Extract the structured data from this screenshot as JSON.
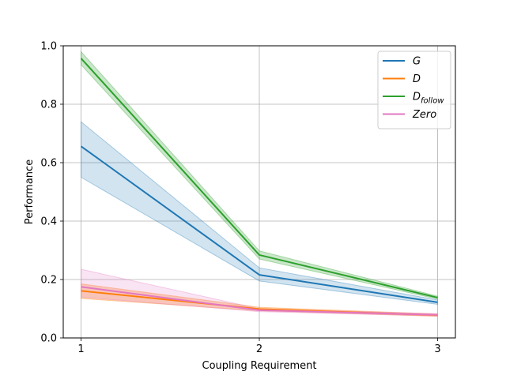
{
  "chart_data": {
    "type": "line",
    "xlabel": "Coupling Requirement",
    "ylabel": "Performance",
    "x": [
      1,
      2,
      3
    ],
    "xticks": [
      "1",
      "2",
      "3"
    ],
    "xlim": [
      0.9,
      3.1
    ],
    "ylim": [
      0.0,
      1.0
    ],
    "yticks": [
      "0.0",
      "0.2",
      "0.4",
      "0.6",
      "0.8",
      "1.0"
    ],
    "grid": true,
    "legend_position": "top-right",
    "series": [
      {
        "name": "G",
        "color": "#1f77b4",
        "values": [
          0.656,
          0.216,
          0.122
        ],
        "lower": [
          0.55,
          0.195,
          0.115
        ],
        "upper": [
          0.74,
          0.24,
          0.13
        ],
        "band_opacity": 0.2
      },
      {
        "name": "D",
        "color": "#ff7f0e",
        "values": [
          0.161,
          0.099,
          0.078
        ],
        "lower": [
          0.135,
          0.093,
          0.074
        ],
        "upper": [
          0.185,
          0.105,
          0.082
        ],
        "band_opacity": 0.3
      },
      {
        "name": "D_follow",
        "name_main": "D",
        "name_sub": "follow",
        "color": "#2ca02c",
        "values": [
          0.957,
          0.284,
          0.138
        ],
        "lower": [
          0.935,
          0.27,
          0.133
        ],
        "upper": [
          0.98,
          0.298,
          0.143
        ],
        "band_opacity": 0.25
      },
      {
        "name": "Zero",
        "color": "#e377c2",
        "values": [
          0.175,
          0.095,
          0.079
        ],
        "lower": [
          0.14,
          0.09,
          0.075
        ],
        "upper": [
          0.235,
          0.1,
          0.083
        ],
        "band_opacity": 0.2
      }
    ]
  }
}
